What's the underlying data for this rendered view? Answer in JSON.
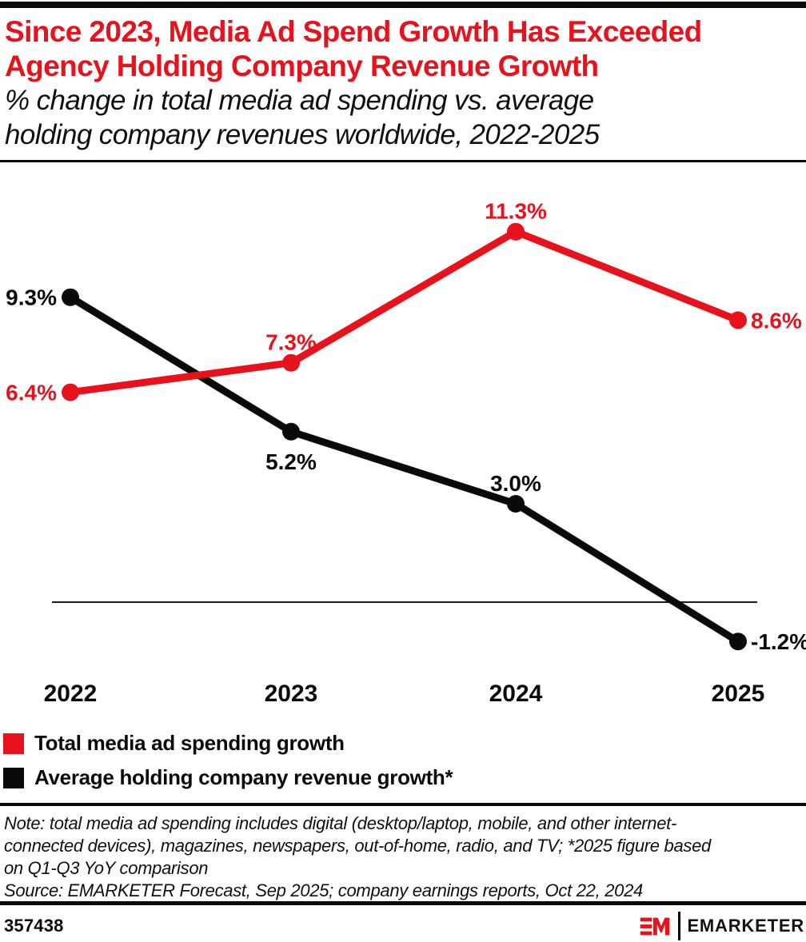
{
  "theme": {
    "accent_red": "#e8121c",
    "ink": "#0a0a0a"
  },
  "header": {
    "title_lines": [
      "Since 2023, Media Ad Spend Growth Has Exceeded",
      "Agency Holding Company Revenue Growth"
    ],
    "subtitle_lines": [
      "% change in total media ad spending vs. average",
      "holding company revenues worldwide, 2022-2025"
    ]
  },
  "chart_data": {
    "type": "line",
    "categories": [
      "2022",
      "2023",
      "2024",
      "2025"
    ],
    "series": [
      {
        "name": "Total media ad spending growth",
        "color": "#e8121c",
        "values": [
          6.4,
          7.3,
          11.3,
          8.6
        ],
        "labels": [
          "6.4%",
          "7.3%",
          "11.3%",
          "8.6%"
        ],
        "label_positions": [
          "left",
          "above",
          "above",
          "right"
        ]
      },
      {
        "name": "Average holding company revenue growth*",
        "color": "#0a0a0a",
        "values": [
          9.3,
          5.2,
          3.0,
          -1.2
        ],
        "labels": [
          "9.3%",
          "5.2%",
          "3.0%",
          "-1.2%"
        ],
        "label_positions": [
          "left",
          "below",
          "above",
          "right"
        ]
      }
    ],
    "ylim": [
      -2.5,
      13.2
    ],
    "baseline": 0,
    "grid": "zero-line-only",
    "legend_position": "bottom-left",
    "title": "% change in total media ad spending vs. average holding company revenues worldwide, 2022-2025",
    "xlabel": "",
    "ylabel": ""
  },
  "footnote": {
    "note_lines": [
      "Note: total media ad spending includes digital (desktop/laptop, mobile, and other internet-",
      "connected devices), magazines, newspapers, out-of-home, radio, and TV; *2025 figure based",
      "on Q1-Q3 YoY comparison"
    ],
    "source": "Source: EMARKETER Forecast, Sep 2025; company earnings reports, Oct 22, 2024"
  },
  "footer": {
    "chart_id": "357438",
    "logo_monogram": "EM",
    "logo_text": "EMARKETER"
  }
}
